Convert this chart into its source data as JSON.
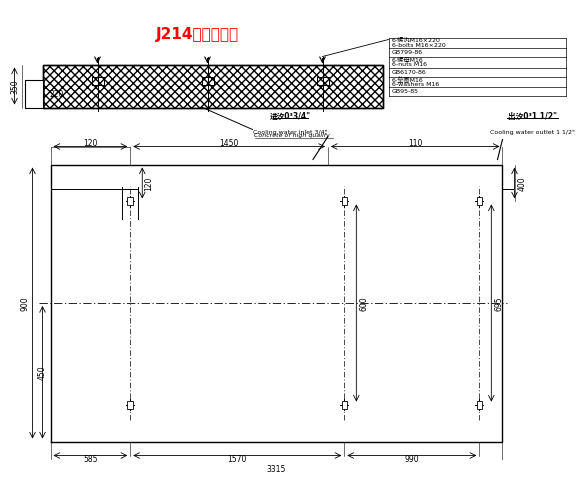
{
  "title": "J214基础安装图",
  "title_color": "#FF0000",
  "bg_color": "#FFFFFF",
  "bom_rows": [
    {
      "cn": "6-螺汍M16×220",
      "en": "6-bolts M16×220",
      "std": null
    },
    {
      "cn": null,
      "en": null,
      "std": "GB799-86"
    },
    {
      "cn": "6-螺母M16",
      "en": "6-nuts M16",
      "std": null
    },
    {
      "cn": null,
      "en": null,
      "std": "GB6170-86"
    },
    {
      "cn": "6-垒圈M16",
      "en": "6-washers M16",
      "std": null
    },
    {
      "cn": null,
      "en": null,
      "std": "GB95-85"
    }
  ],
  "concrete_label": "Concrete of high qualify",
  "inlet_cn": "进汐0³3/4\"",
  "inlet_en": "Cooling water inlet 3/4\"",
  "outlet_cn": "出汐0³1 1/2\"",
  "outlet_en": "Cooling water outlet 1 1/2\""
}
